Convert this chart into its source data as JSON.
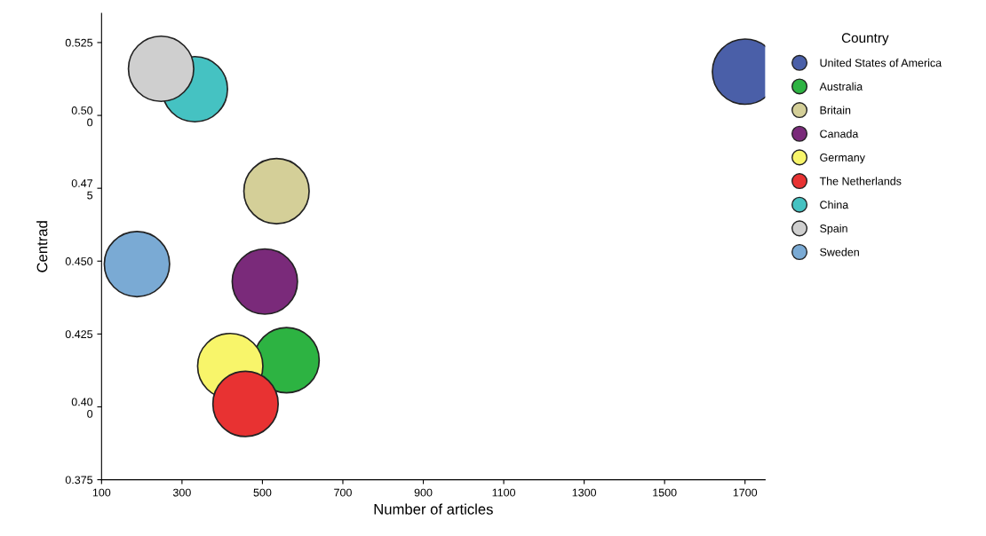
{
  "chart_data": {
    "type": "bubble",
    "xlabel": "Number of articles",
    "ylabel": "Centrad",
    "legend_title": "Country",
    "legend": "right",
    "xlim": [
      100,
      1750
    ],
    "xticks": [
      100,
      300,
      500,
      700,
      900,
      1100,
      1300,
      1500,
      1700
    ],
    "ylim": [
      0.375,
      0.535
    ],
    "yticks": [
      0.525,
      {
        "value": 0.5,
        "label": "0.50\n0"
      },
      {
        "value": 0.475,
        "label": "0.47\n5"
      },
      {
        "value": 0.45,
        "label": "0.450"
      },
      {
        "value": 0.425,
        "label": "0.425"
      },
      {
        "value": 0.4,
        "label": "0.40\n0"
      },
      {
        "value": 0.375,
        "label": "0.375"
      }
    ],
    "grid": false,
    "series": [
      {
        "name": "United States of America",
        "color": "#4a5fa8",
        "x": [
          1700
        ],
        "values": [
          0.515
        ],
        "sizes": [
          1
        ]
      },
      {
        "name": "Australia",
        "color": "#2db342",
        "x": [
          560
        ],
        "values": [
          0.416
        ],
        "sizes": [
          1
        ]
      },
      {
        "name": "Britain",
        "color": "#d4cf98",
        "x": [
          535
        ],
        "values": [
          0.474
        ],
        "sizes": [
          1
        ]
      },
      {
        "name": "Canada",
        "color": "#7a2a7a",
        "x": [
          506
        ],
        "values": [
          0.443
        ],
        "sizes": [
          1
        ]
      },
      {
        "name": "Germany",
        "color": "#f8f56a",
        "x": [
          420
        ],
        "values": [
          0.414
        ],
        "sizes": [
          1
        ]
      },
      {
        "name": "The Netherlands",
        "color": "#e83232",
        "x": [
          458
        ],
        "values": [
          0.401
        ],
        "sizes": [
          1
        ]
      },
      {
        "name": "China",
        "color": "#45c2c2",
        "x": [
          332
        ],
        "values": [
          0.509
        ],
        "sizes": [
          1
        ]
      },
      {
        "name": "Spain",
        "color": "#cfcfcf",
        "x": [
          248
        ],
        "values": [
          0.516
        ],
        "sizes": [
          1
        ]
      },
      {
        "name": "Sweden",
        "color": "#7aaad4",
        "x": [
          188
        ],
        "values": [
          0.449
        ],
        "sizes": [
          1
        ]
      }
    ]
  }
}
